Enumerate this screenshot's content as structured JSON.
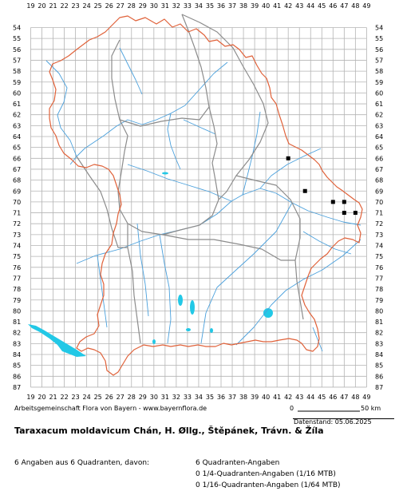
{
  "map": {
    "x_labels": [
      "19",
      "20",
      "21",
      "22",
      "23",
      "24",
      "25",
      "26",
      "27",
      "28",
      "29",
      "30",
      "31",
      "32",
      "33",
      "34",
      "35",
      "36",
      "37",
      "38",
      "39",
      "40",
      "41",
      "42",
      "43",
      "44",
      "45",
      "46",
      "47",
      "48",
      "49"
    ],
    "y_labels": [
      "54",
      "55",
      "56",
      "57",
      "58",
      "59",
      "60",
      "61",
      "62",
      "63",
      "64",
      "65",
      "66",
      "67",
      "68",
      "69",
      "70",
      "71",
      "72",
      "73",
      "74",
      "75",
      "76",
      "77",
      "78",
      "79",
      "80",
      "81",
      "82",
      "83",
      "84",
      "85",
      "86",
      "87"
    ],
    "occurrences": [
      {
        "x": 42,
        "y": 66
      },
      {
        "x": 43.5,
        "y": 69
      },
      {
        "x": 46,
        "y": 70
      },
      {
        "x": 47,
        "y": 70
      },
      {
        "x": 47,
        "y": 71
      },
      {
        "x": 48,
        "y": 71
      }
    ],
    "colors": {
      "grid": "#b4b4b4",
      "border": "#e0623a",
      "district": "#8c8c8c",
      "river": "#4aa0dc",
      "lake": "#22c8e6",
      "marker": "#000000"
    }
  },
  "footer": {
    "credit": "Arbeitsgemeinschaft Flora von Bayern - www.bayernflora.de",
    "scale_start": "0",
    "scale_end": "50 km",
    "datenstand": "Datenstand: 05.06.2025",
    "title": "Taraxacum moldavicum Chán, H. Øllg., Štěpánek, Trávn. & Žíla",
    "summary": "6 Angaben aus 6 Quadranten, davon:",
    "stat_quadrant": "6 Quadranten-Angaben",
    "stat_quarter": "0 1/4-Quadranten-Angaben (1/16 MTB)",
    "stat_sixteenth": "0 1/16-Quadranten-Angaben (1/64 MTB)"
  }
}
